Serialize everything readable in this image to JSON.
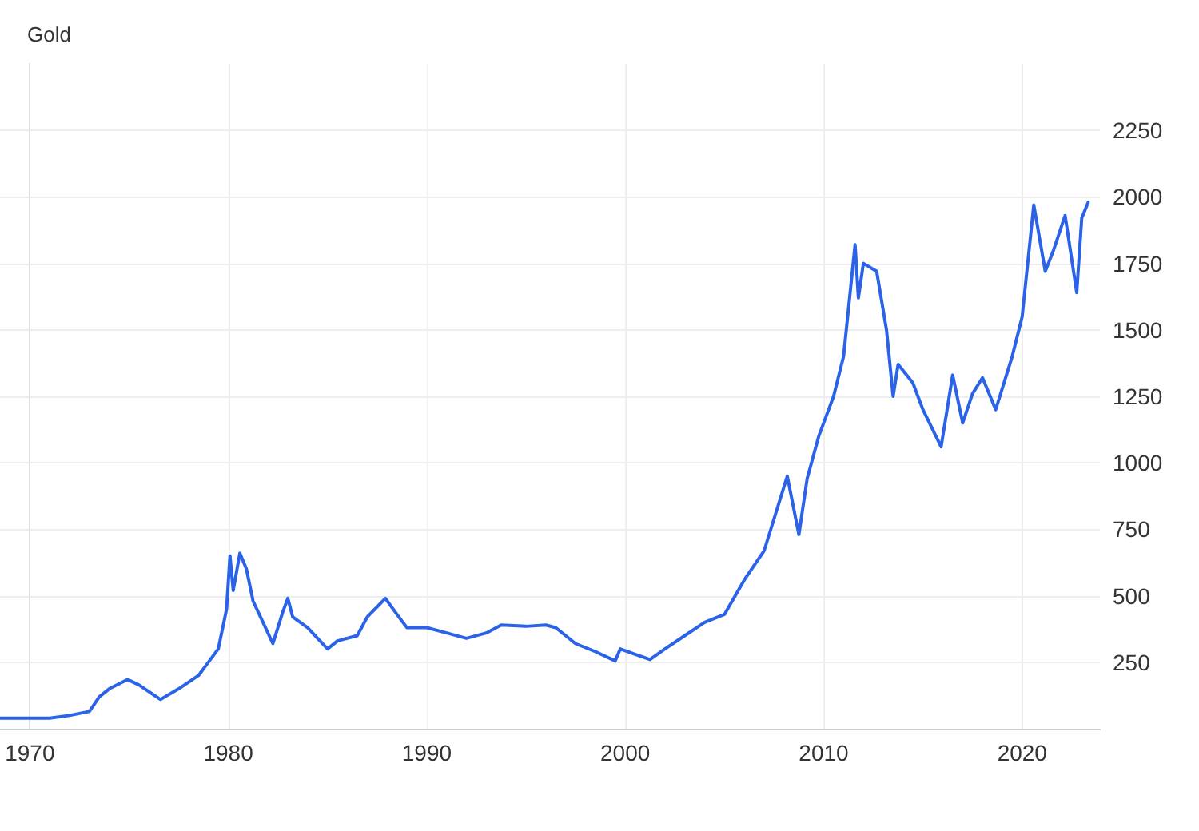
{
  "chart_data": {
    "type": "line",
    "title": "Gold",
    "x": [
      "1968-07",
      "1971-01",
      "1972-01",
      "1973-01",
      "1973-07",
      "1974-01",
      "1974-12",
      "1975-07",
      "1976-08",
      "1977-07",
      "1978-07",
      "1979-07",
      "1979-12",
      "1980-02",
      "1980-04",
      "1980-08",
      "1980-12",
      "1981-04",
      "1981-10",
      "1982-04",
      "1982-10",
      "1983-01",
      "1983-04",
      "1984-01",
      "1985-01",
      "1985-07",
      "1986-07",
      "1987-01",
      "1987-12",
      "1988-07",
      "1989-01",
      "1990-01",
      "1991-01",
      "1992-01",
      "1993-01",
      "1993-10",
      "1995-01",
      "1996-01",
      "1996-07",
      "1997-07",
      "1998-07",
      "1999-07",
      "1999-10",
      "2000-07",
      "2001-04",
      "2002-01",
      "2003-01",
      "2004-01",
      "2005-01",
      "2006-01",
      "2007-01",
      "2008-03",
      "2008-10",
      "2009-03",
      "2009-10",
      "2010-07",
      "2011-01",
      "2011-08",
      "2011-10",
      "2012-01",
      "2012-09",
      "2013-03",
      "2013-07",
      "2013-10",
      "2014-07",
      "2015-01",
      "2015-12",
      "2016-07",
      "2017-01",
      "2017-07",
      "2018-01",
      "2018-09",
      "2019-07",
      "2020-01",
      "2020-08",
      "2021-03",
      "2021-08",
      "2022-03",
      "2022-10",
      "2023-01",
      "2023-05"
    ],
    "series": [
      {
        "color": "#2a62e8",
        "values": [
          40,
          40,
          50,
          65,
          120,
          150,
          185,
          165,
          110,
          150,
          200,
          300,
          450,
          650,
          520,
          660,
          600,
          480,
          400,
          320,
          440,
          490,
          420,
          380,
          300,
          330,
          350,
          420,
          490,
          430,
          380,
          380,
          360,
          340,
          360,
          390,
          385,
          390,
          380,
          320,
          290,
          255,
          300,
          280,
          260,
          300,
          350,
          400,
          430,
          560,
          670,
          950,
          730,
          940,
          1100,
          1250,
          1400,
          1820,
          1620,
          1750,
          1720,
          1500,
          1250,
          1370,
          1300,
          1200,
          1060,
          1330,
          1150,
          1260,
          1320,
          1200,
          1400,
          1550,
          1970,
          1720,
          1800,
          1930,
          1640,
          1920,
          1980
        ]
      }
    ],
    "xlim": [
      "1968-07",
      "2023-12"
    ],
    "xticks": [
      "1970",
      "1980",
      "1990",
      "2000",
      "2010",
      "2020"
    ],
    "ylim": [
      0,
      2500
    ],
    "yticks": [
      250,
      500,
      750,
      1000,
      1250,
      1500,
      1750,
      2000,
      2250
    ],
    "grid": true,
    "marker": "none",
    "line_style": "solid"
  }
}
